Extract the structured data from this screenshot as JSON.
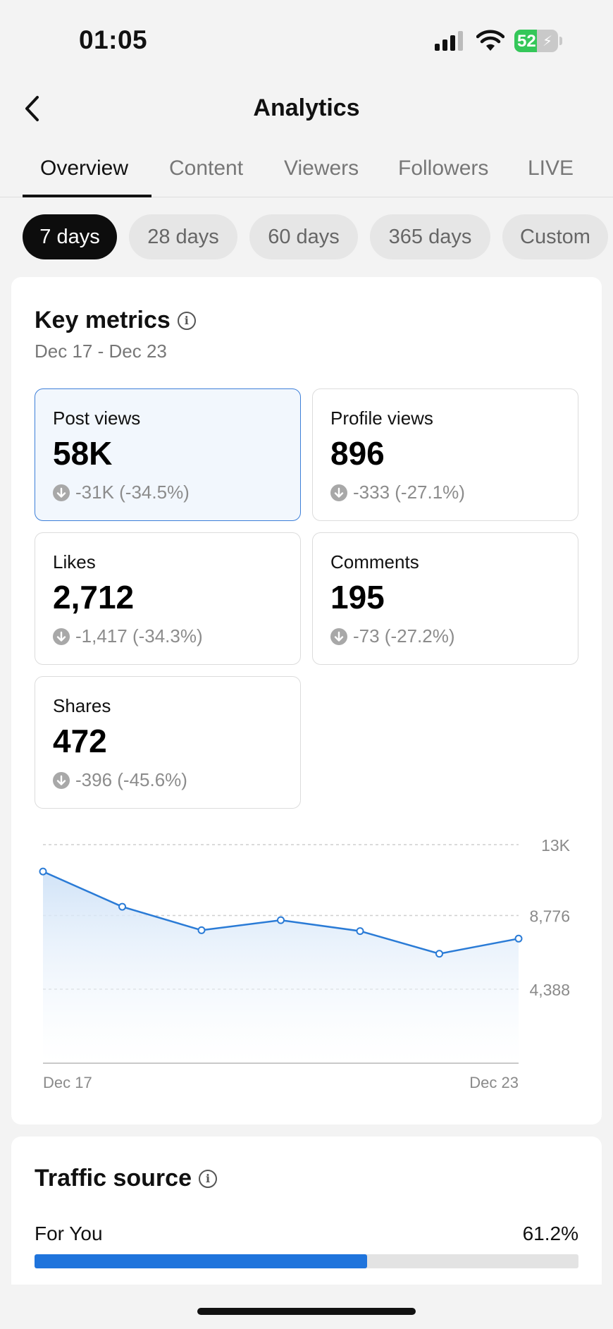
{
  "status_bar": {
    "time": "01:05",
    "battery_level": "52",
    "battery_fraction": 0.52
  },
  "nav": {
    "title": "Analytics"
  },
  "tabs": [
    {
      "label": "Overview",
      "active": true
    },
    {
      "label": "Content",
      "active": false
    },
    {
      "label": "Viewers",
      "active": false
    },
    {
      "label": "Followers",
      "active": false
    },
    {
      "label": "LIVE",
      "active": false
    }
  ],
  "ranges": [
    {
      "label": "7 days",
      "active": true
    },
    {
      "label": "28 days",
      "active": false
    },
    {
      "label": "60 days",
      "active": false
    },
    {
      "label": "365 days",
      "active": false
    },
    {
      "label": "Custom",
      "active": false
    }
  ],
  "key_metrics": {
    "title": "Key metrics",
    "date_range": "Dec 17 - Dec 23",
    "items": [
      {
        "label": "Post views",
        "value": "58K",
        "change": "-31K (-34.5%)",
        "selected": true
      },
      {
        "label": "Profile views",
        "value": "896",
        "change": "-333 (-27.1%)",
        "selected": false
      },
      {
        "label": "Likes",
        "value": "2,712",
        "change": "-1,417 (-34.3%)",
        "selected": false
      },
      {
        "label": "Comments",
        "value": "195",
        "change": "-73 (-27.2%)",
        "selected": false
      },
      {
        "label": "Shares",
        "value": "472",
        "change": "-396 (-45.6%)",
        "selected": false
      }
    ]
  },
  "chart_data": {
    "type": "area",
    "x": [
      "Dec 17",
      "Dec 18",
      "Dec 19",
      "Dec 20",
      "Dec 21",
      "Dec 22",
      "Dec 23"
    ],
    "y": [
      11400,
      9300,
      7900,
      8500,
      7850,
      6500,
      7400
    ],
    "x_tick_labels": [
      "Dec 17",
      "Dec 23"
    ],
    "y_ticks": [
      {
        "value": 13000,
        "label": "13K"
      },
      {
        "value": 8776,
        "label": "8,776"
      },
      {
        "value": 4388,
        "label": "4,388"
      }
    ],
    "ylim": [
      0,
      13000
    ],
    "grid": true,
    "line_color": "#2a7bd6",
    "fill_color": "#cfe2f7"
  },
  "traffic_source": {
    "title": "Traffic source",
    "items": [
      {
        "label": "For You",
        "percent": "61.2%",
        "fraction": 0.612
      }
    ]
  }
}
